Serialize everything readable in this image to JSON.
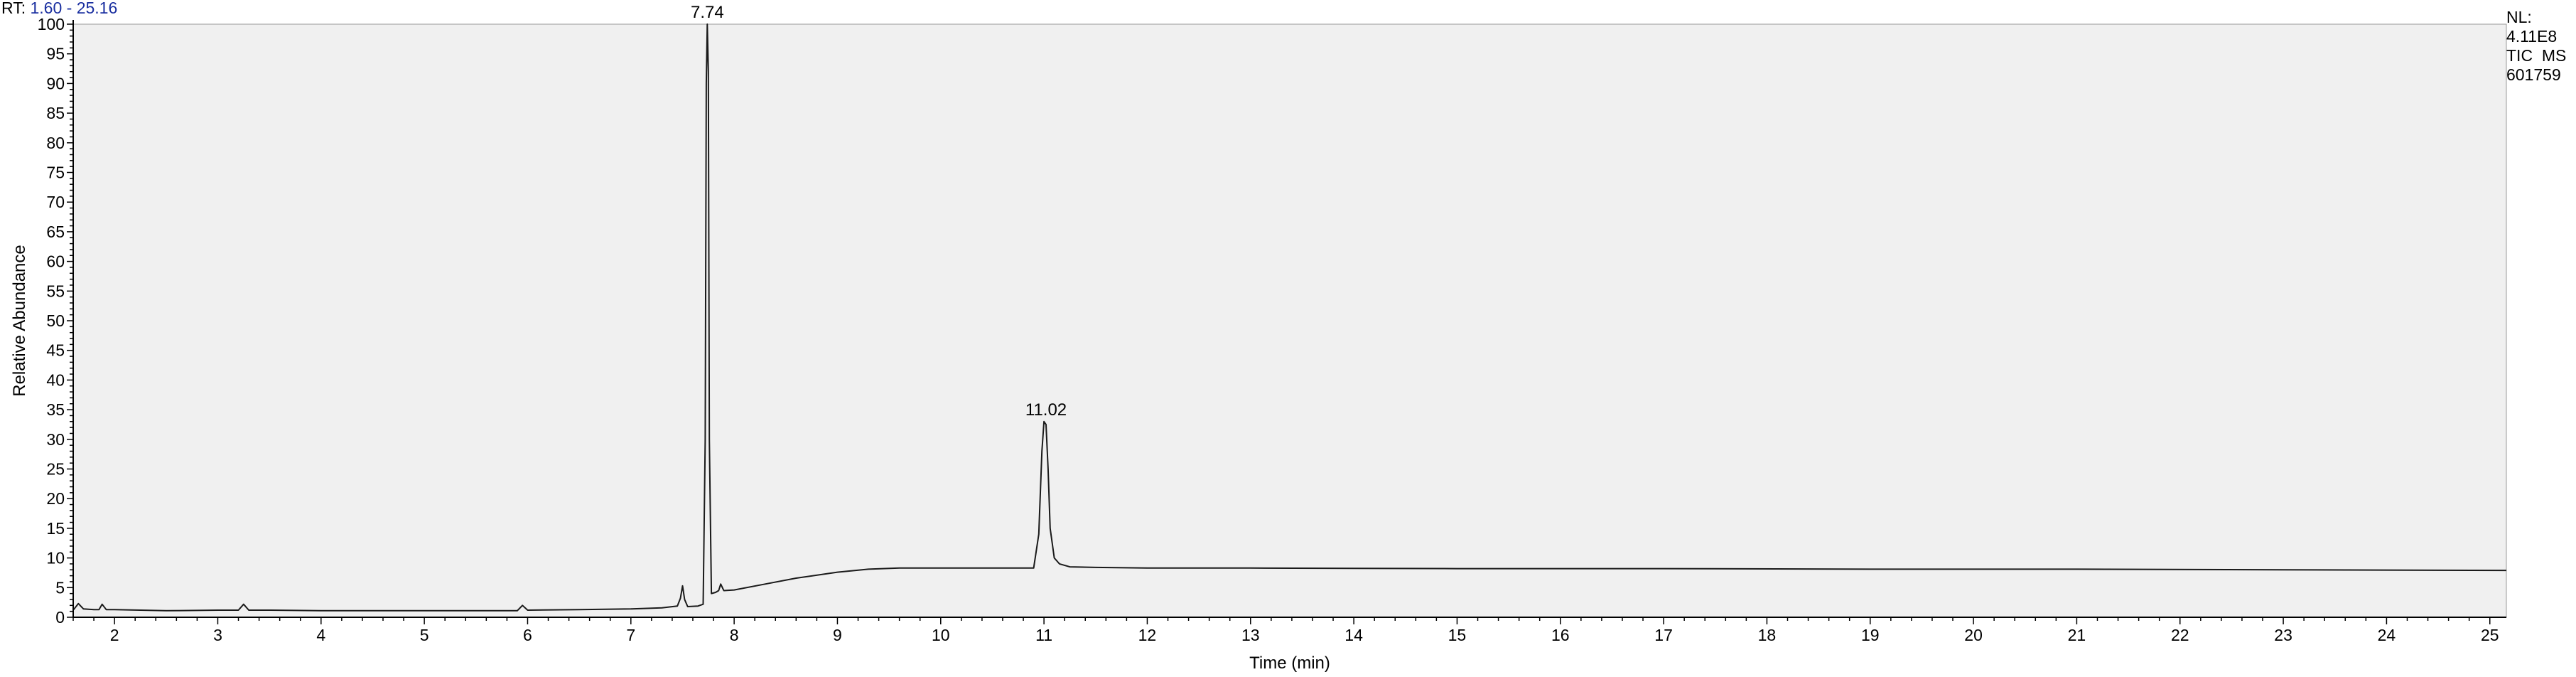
{
  "header": {
    "rt_label": "RT:",
    "rt_range": "1.60 - 25.16"
  },
  "info": {
    "nl_label": "NL:",
    "nl_value": "4.11E8",
    "scan_type": "TIC  MS",
    "sample": "601759"
  },
  "chart_data": {
    "type": "line",
    "xlabel": "Time (min)",
    "ylabel": "Relative Abundance",
    "xlim": [
      1.6,
      25.16
    ],
    "ylim": [
      0,
      100
    ],
    "x_ticks": [
      2,
      3,
      4,
      5,
      6,
      7,
      8,
      9,
      10,
      11,
      12,
      13,
      14,
      15,
      16,
      17,
      18,
      19,
      20,
      21,
      22,
      23,
      24,
      25
    ],
    "y_ticks": [
      0,
      5,
      10,
      15,
      20,
      25,
      30,
      35,
      40,
      45,
      50,
      55,
      60,
      65,
      70,
      75,
      80,
      85,
      90,
      95,
      100
    ],
    "grid": false,
    "plot_background": "#f0f0f0",
    "line_color": "#1a1a1a",
    "peak_labels": [
      {
        "x": 7.74,
        "y": 100,
        "label": "7.74"
      },
      {
        "x": 11.02,
        "y": 33,
        "label": "11.02"
      }
    ],
    "series": [
      {
        "x": [
          1.6,
          1.65,
          1.7,
          1.8,
          1.85,
          1.88,
          1.92,
          2.0,
          2.5,
          3.0,
          3.2,
          3.25,
          3.3,
          3.5,
          4.0,
          5.0,
          5.9,
          5.95,
          6.0,
          6.5,
          7.0,
          7.3,
          7.45,
          7.48,
          7.5,
          7.52,
          7.55,
          7.65,
          7.7,
          7.72,
          7.73,
          7.74,
          7.75,
          7.76,
          7.78,
          7.82,
          7.85,
          7.87,
          7.9,
          8.0,
          8.3,
          8.6,
          9.0,
          9.3,
          9.6,
          10.0,
          10.5,
          10.9,
          10.95,
          10.98,
          11.0,
          11.02,
          11.04,
          11.06,
          11.1,
          11.15,
          11.25,
          11.5,
          12.0,
          13.0,
          15.0,
          17.0,
          19.0,
          21.0,
          23.0,
          25.16
        ],
        "y": [
          1.2,
          2.3,
          1.4,
          1.3,
          1.3,
          2.2,
          1.3,
          1.3,
          1.1,
          1.2,
          1.2,
          2.2,
          1.2,
          1.2,
          1.1,
          1.1,
          1.1,
          2.0,
          1.2,
          1.3,
          1.4,
          1.6,
          1.9,
          3.2,
          5.3,
          3.0,
          1.8,
          1.9,
          2.2,
          30.0,
          90.0,
          100.0,
          92.0,
          30.0,
          4.0,
          4.2,
          4.5,
          5.6,
          4.5,
          4.6,
          5.6,
          6.6,
          7.6,
          8.1,
          8.3,
          8.3,
          8.3,
          8.3,
          14.0,
          28.0,
          33.0,
          32.5,
          25.0,
          15.0,
          10.0,
          9.0,
          8.5,
          8.4,
          8.3,
          8.3,
          8.2,
          8.2,
          8.1,
          8.1,
          8.0,
          7.9
        ]
      }
    ]
  }
}
